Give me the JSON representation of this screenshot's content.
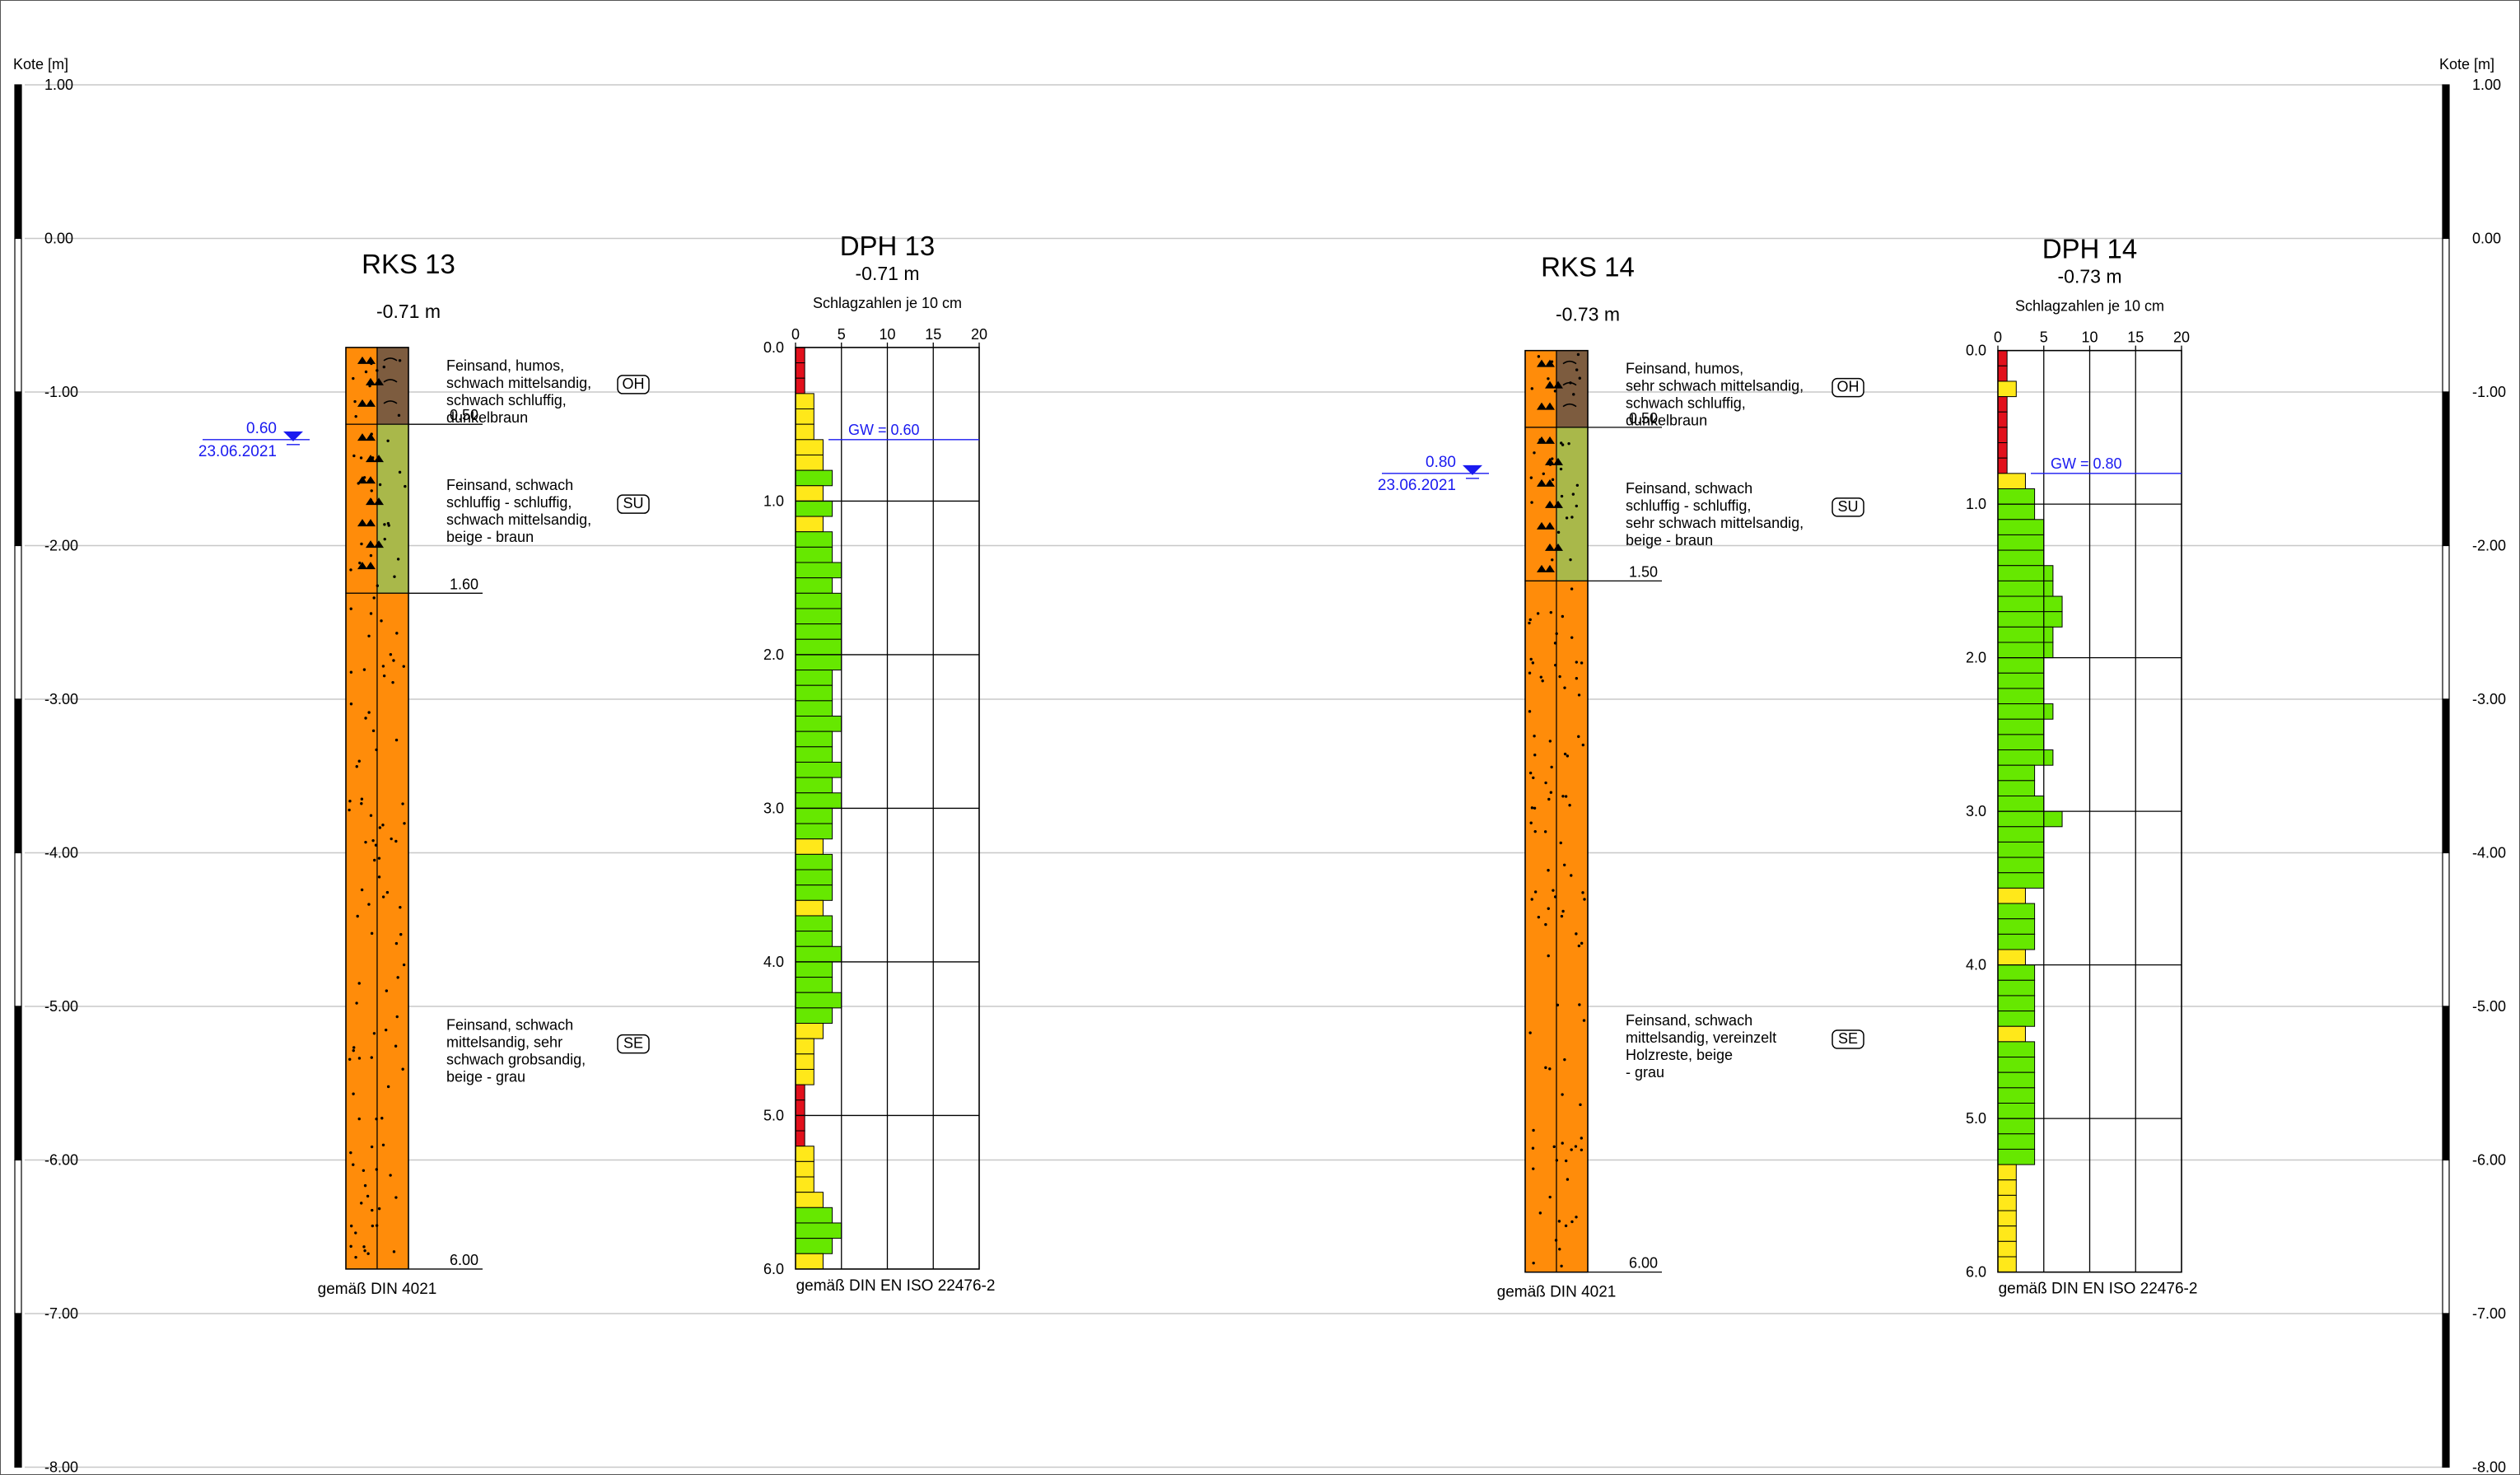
{
  "axis": {
    "label": "Kote [m]",
    "ticks": [
      "1.00",
      "0.00",
      "-1.00",
      "-2.00",
      "-3.00",
      "-4.00",
      "-5.00",
      "-6.00",
      "-7.00",
      "-8.00"
    ]
  },
  "columns": [
    {
      "title": "RKS 13",
      "elevation": "-0.71 m",
      "top_kote": -0.71,
      "footer": "gemäß DIN 4021",
      "groundwater": {
        "depth_label": "0.60",
        "date": "23.06.2021",
        "depth": 0.6
      },
      "layers": [
        {
          "from": 0.0,
          "to": 0.5,
          "depth_label": "0.50",
          "symbol": "OH",
          "color": "#7d5c3f",
          "pattern": "humus",
          "description": [
            "Feinsand, humos,",
            "schwach mittelsandig,",
            "schwach schluffig,",
            "dunkelbraun"
          ]
        },
        {
          "from": 0.5,
          "to": 1.6,
          "depth_label": "1.60",
          "symbol": "SU",
          "color": "#a9b84a",
          "pattern": "silt",
          "description": [
            "Feinsand, schwach",
            "schluffig - schluffig,",
            "schwach mittelsandig,",
            "beige - braun"
          ]
        },
        {
          "from": 1.6,
          "to": 6.0,
          "depth_label": "6.00",
          "symbol": "SE",
          "color": "#ff8c0a",
          "pattern": "sand",
          "description": [
            "Feinsand, schwach",
            "mittelsandig, sehr",
            "schwach grobsandig,",
            "beige - grau"
          ]
        }
      ]
    },
    {
      "title": "RKS 14",
      "elevation": "-0.73 m",
      "top_kote": -0.73,
      "footer": "gemäß DIN 4021",
      "groundwater": {
        "depth_label": "0.80",
        "date": "23.06.2021",
        "depth": 0.8
      },
      "layers": [
        {
          "from": 0.0,
          "to": 0.5,
          "depth_label": "0.50",
          "symbol": "OH",
          "color": "#7d5c3f",
          "pattern": "humus",
          "description": [
            "Feinsand, humos,",
            "sehr schwach mittelsandig,",
            "schwach schluffig,",
            "dunkelbraun"
          ]
        },
        {
          "from": 0.5,
          "to": 1.5,
          "depth_label": "1.50",
          "symbol": "SU",
          "color": "#a9b84a",
          "pattern": "silt",
          "description": [
            "Feinsand, schwach",
            "schluffig - schluffig,",
            "sehr schwach mittelsandig,",
            "beige - braun"
          ]
        },
        {
          "from": 1.5,
          "to": 6.0,
          "depth_label": "6.00",
          "symbol": "SE",
          "color": "#ff8c0a",
          "pattern": "sand",
          "description": [
            "Feinsand, schwach",
            "mittelsandig, vereinzelt",
            "Holzreste, beige",
            "- grau"
          ]
        }
      ]
    }
  ],
  "probes": [
    {
      "title": "DPH 13",
      "elevation": "-0.71 m",
      "top_kote": -0.71,
      "subtitle": "Schlagzahlen je 10 cm",
      "footer": "gemäß DIN EN ISO 22476-2",
      "gw_label": "GW = 0.60",
      "gw_depth": 0.6,
      "x_ticks": [
        "0",
        "5",
        "10",
        "15",
        "20"
      ],
      "depth_ticks": [
        "0.0",
        "1.0",
        "2.0",
        "3.0",
        "4.0",
        "5.0",
        "6.0"
      ],
      "blows": [
        1,
        1,
        1,
        2,
        2,
        2,
        3,
        3,
        4,
        3,
        4,
        3,
        4,
        4,
        5,
        4,
        5,
        5,
        5,
        5,
        5,
        4,
        4,
        4,
        5,
        4,
        4,
        5,
        4,
        5,
        4,
        4,
        3,
        4,
        4,
        4,
        3,
        4,
        4,
        5,
        4,
        4,
        5,
        4,
        3,
        2,
        2,
        2,
        1,
        1,
        1,
        1,
        2,
        2,
        2,
        3,
        4,
        5,
        4,
        3,
        2,
        2,
        2,
        2,
        3,
        3
      ],
      "colors": {
        "low": "#e2101c",
        "mid": "#ffe81a",
        "high": "#66e800"
      }
    },
    {
      "title": "DPH 14",
      "elevation": "-0.73 m",
      "top_kote": -0.73,
      "subtitle": "Schlagzahlen je 10 cm",
      "footer": "gemäß DIN EN ISO 22476-2",
      "gw_label": "GW = 0.80",
      "gw_depth": 0.8,
      "x_ticks": [
        "0",
        "5",
        "10",
        "15",
        "20"
      ],
      "depth_ticks": [
        "0.0",
        "1.0",
        "2.0",
        "3.0",
        "4.0",
        "5.0",
        "6.0"
      ],
      "blows": [
        1,
        1,
        2,
        1,
        1,
        1,
        1,
        1,
        3,
        4,
        4,
        5,
        5,
        5,
        6,
        6,
        7,
        7,
        6,
        6,
        5,
        5,
        5,
        6,
        5,
        5,
        6,
        4,
        4,
        5,
        7,
        5,
        5,
        5,
        5,
        3,
        4,
        4,
        4,
        3,
        4,
        4,
        4,
        4,
        3,
        4,
        4,
        4,
        4,
        4,
        4,
        4,
        4,
        2,
        2,
        2,
        2,
        2,
        2,
        2,
        1,
        2,
        1,
        2,
        2,
        2
      ],
      "colors": {
        "low": "#e2101c",
        "mid": "#ffe81a",
        "high": "#66e800"
      }
    }
  ],
  "colors": {
    "gw": "#1a1af0",
    "grid": "#c8c8c8",
    "axis": "#000000"
  }
}
